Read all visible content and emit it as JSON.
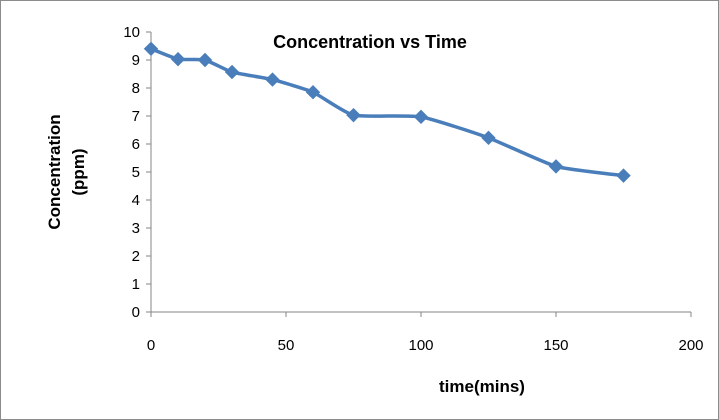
{
  "chart_data": {
    "type": "line",
    "title": "Concentration vs Time",
    "xlabel": "time(mins)",
    "ylabel_lines": [
      "Concentration",
      "(ppm)"
    ],
    "xlim": [
      0,
      200
    ],
    "ylim": [
      0,
      10
    ],
    "x_ticks": [
      "0",
      "50",
      "100",
      "150",
      "200"
    ],
    "y_ticks": [
      "0",
      "1",
      "2",
      "3",
      "4",
      "5",
      "6",
      "7",
      "8",
      "9",
      "10"
    ],
    "grid": false,
    "legend": "none",
    "series": [
      {
        "color": "#4a7ebb",
        "marker": "diamond",
        "smooth": true,
        "x": [
          0,
          10,
          20,
          30,
          45,
          60,
          75,
          100,
          125,
          150,
          175
        ],
        "y": [
          9.4,
          9.03,
          9.0,
          8.57,
          8.3,
          7.85,
          7.03,
          6.97,
          6.22,
          5.2,
          4.87
        ]
      }
    ]
  }
}
